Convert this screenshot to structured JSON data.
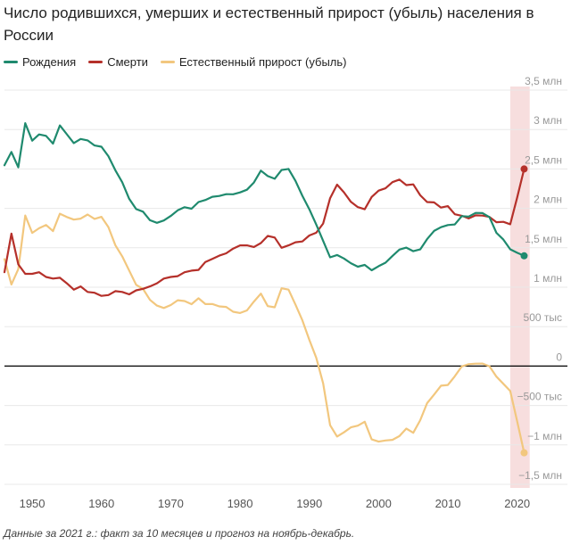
{
  "chart_data": {
    "type": "line",
    "title": "Число родившихся, умерших и естественный прирост (убыль) населения в России",
    "x_ticks": [
      1950,
      1960,
      1970,
      1980,
      1990,
      2000,
      2010,
      2020
    ],
    "xlim": [
      1946,
      2023
    ],
    "ylim": [
      -1500000,
      3500000
    ],
    "y_ticks": [
      {
        "value": 3500000,
        "label": "3,5 млн"
      },
      {
        "value": 3000000,
        "label": "3 млн"
      },
      {
        "value": 2500000,
        "label": "2,5 млн"
      },
      {
        "value": 2000000,
        "label": "2 млн"
      },
      {
        "value": 1500000,
        "label": "1,5 млн"
      },
      {
        "value": 1000000,
        "label": "1 млн"
      },
      {
        "value": 500000,
        "label": "500 тыс"
      },
      {
        "value": 0,
        "label": "0"
      },
      {
        "value": -500000,
        "label": "−500 тыс"
      },
      {
        "value": -1000000,
        "label": "−1 млн"
      },
      {
        "value": -1500000,
        "label": "−1,5 млн"
      }
    ],
    "highlight_range": [
      2019,
      2021.8
    ],
    "series": [
      {
        "name": "Рождения",
        "color": "#1f8a6e",
        "x": [
          1946,
          1947,
          1948,
          1949,
          1950,
          1951,
          1952,
          1953,
          1954,
          1955,
          1956,
          1957,
          1958,
          1959,
          1960,
          1961,
          1962,
          1963,
          1964,
          1965,
          1966,
          1967,
          1968,
          1969,
          1970,
          1971,
          1972,
          1973,
          1974,
          1975,
          1976,
          1977,
          1978,
          1979,
          1980,
          1981,
          1982,
          1983,
          1984,
          1985,
          1986,
          1987,
          1988,
          1989,
          1990,
          1991,
          1992,
          1993,
          1994,
          1995,
          1996,
          1997,
          1998,
          1999,
          2000,
          2001,
          2002,
          2003,
          2004,
          2005,
          2006,
          2007,
          2008,
          2009,
          2010,
          2011,
          2012,
          2013,
          2014,
          2015,
          2016,
          2017,
          2018,
          2019,
          2020,
          2021
        ],
        "y": [
          2546000,
          2715000,
          2520000,
          3080000,
          2859000,
          2938000,
          2920000,
          2821000,
          3052000,
          2940000,
          2828000,
          2880000,
          2862000,
          2797000,
          2782000,
          2662000,
          2483000,
          2331000,
          2121000,
          1991000,
          1958000,
          1849000,
          1817000,
          1846000,
          1904000,
          1975000,
          2015000,
          1995000,
          2080000,
          2106000,
          2147000,
          2157000,
          2180000,
          2179000,
          2203000,
          2236000,
          2328000,
          2478000,
          2410000,
          2375000,
          2486000,
          2500000,
          2348000,
          2160000,
          1988800,
          1794600,
          1587600,
          1378900,
          1408200,
          1363800,
          1304600,
          1259900,
          1283300,
          1214700,
          1266800,
          1311600,
          1396700,
          1477300,
          1502500,
          1457400,
          1479600,
          1610100,
          1713900,
          1761700,
          1788900,
          1796600,
          1902100,
          1895800,
          1942700,
          1940600,
          1888700,
          1690300,
          1604300,
          1481100,
          1436500,
          1398300
        ]
      },
      {
        "name": "Смерти",
        "color": "#b5302a",
        "x": [
          1946,
          1947,
          1948,
          1949,
          1950,
          1951,
          1952,
          1953,
          1954,
          1955,
          1956,
          1957,
          1958,
          1959,
          1960,
          1961,
          1962,
          1963,
          1964,
          1965,
          1966,
          1967,
          1968,
          1969,
          1970,
          1971,
          1972,
          1973,
          1974,
          1975,
          1976,
          1977,
          1978,
          1979,
          1980,
          1981,
          1982,
          1983,
          1984,
          1985,
          1986,
          1987,
          1988,
          1989,
          1990,
          1991,
          1992,
          1993,
          1994,
          1995,
          1996,
          1997,
          1998,
          1999,
          2000,
          2001,
          2002,
          2003,
          2004,
          2005,
          2006,
          2007,
          2008,
          2009,
          2010,
          2011,
          2012,
          2013,
          2014,
          2015,
          2016,
          2017,
          2018,
          2019,
          2020,
          2021
        ],
        "y": [
          1190000,
          1680000,
          1290000,
          1170000,
          1170000,
          1190000,
          1130000,
          1110000,
          1120000,
          1050000,
          970000,
          1010000,
          940000,
          930000,
          890000,
          900000,
          950000,
          940000,
          910000,
          960000,
          980000,
          1010000,
          1050000,
          1110000,
          1130000,
          1140000,
          1190000,
          1210000,
          1220000,
          1320000,
          1360000,
          1400000,
          1430000,
          1490000,
          1530000,
          1530000,
          1510000,
          1560000,
          1650000,
          1630000,
          1500000,
          1530000,
          1570000,
          1580000,
          1656000,
          1690800,
          1807400,
          2129300,
          2301400,
          2203800,
          2082200,
          2015800,
          1988700,
          2144300,
          2225300,
          2254900,
          2332300,
          2365800,
          2295400,
          2303900,
          2166700,
          2080400,
          2075900,
          2010500,
          2028500,
          1925700,
          1906300,
          1871800,
          1912300,
          1908500,
          1891000,
          1824300,
          1828900,
          1798300,
          2138600,
          2500000
        ]
      },
      {
        "name": "Естественный прирост (убыль)",
        "color": "#f2c77e",
        "x": [
          1946,
          1947,
          1948,
          1949,
          1950,
          1951,
          1952,
          1953,
          1954,
          1955,
          1956,
          1957,
          1958,
          1959,
          1960,
          1961,
          1962,
          1963,
          1964,
          1965,
          1966,
          1967,
          1968,
          1969,
          1970,
          1971,
          1972,
          1973,
          1974,
          1975,
          1976,
          1977,
          1978,
          1979,
          1980,
          1981,
          1982,
          1983,
          1984,
          1985,
          1986,
          1987,
          1988,
          1989,
          1990,
          1991,
          1992,
          1993,
          1994,
          1995,
          1996,
          1997,
          1998,
          1999,
          2000,
          2001,
          2002,
          2003,
          2004,
          2005,
          2006,
          2007,
          2008,
          2009,
          2010,
          2011,
          2012,
          2013,
          2014,
          2015,
          2016,
          2017,
          2018,
          2019,
          2020,
          2021
        ],
        "y": [
          1356000,
          1035000,
          1230000,
          1910000,
          1689000,
          1748000,
          1790000,
          1711000,
          1932000,
          1890000,
          1858000,
          1870000,
          1922000,
          1867000,
          1892000,
          1762000,
          1533000,
          1391000,
          1211000,
          1031000,
          978000,
          839000,
          767000,
          736000,
          774000,
          835000,
          825000,
          785000,
          860000,
          786000,
          787000,
          757000,
          750000,
          689000,
          673000,
          706000,
          818000,
          918000,
          760000,
          745000,
          986000,
          970000,
          778000,
          580000,
          332800,
          103800,
          -219800,
          -750400,
          -893200,
          -840000,
          -777600,
          -755900,
          -705400,
          -929600,
          -958500,
          -943300,
          -935600,
          -888500,
          -792900,
          -846500,
          -687100,
          -470300,
          -362000,
          -248800,
          -239600,
          -129100,
          -4200,
          24000,
          30400,
          32100,
          -2300,
          -134000,
          -224600,
          -317200,
          -702100,
          -1100000
        ]
      }
    ]
  },
  "note": "Данные за 2021 г.: факт за 10 месяцев и прогноз на ноябрь-декабрь."
}
